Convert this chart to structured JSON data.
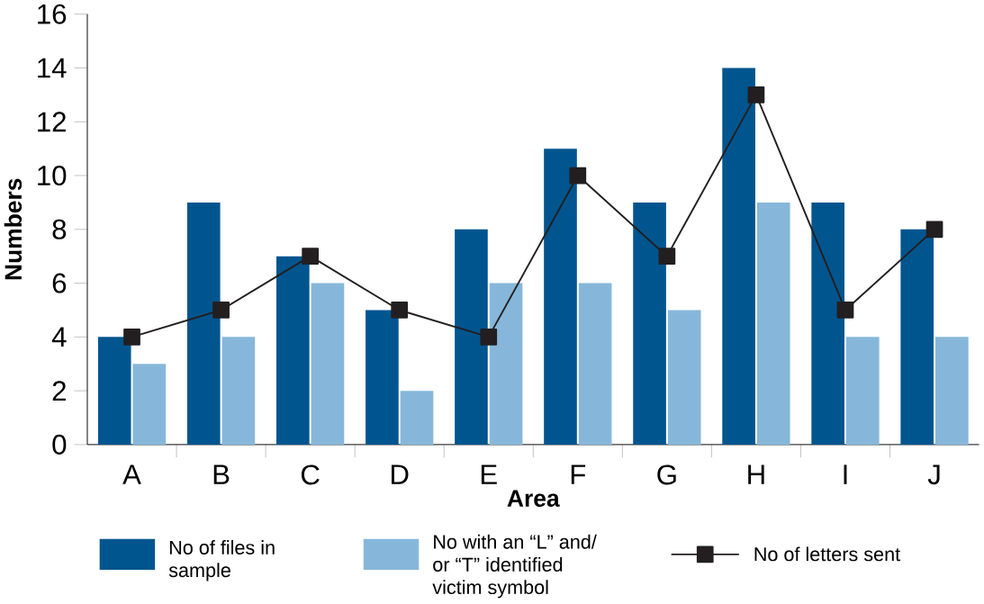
{
  "chart_data": {
    "type": "bar",
    "xlabel": "Area",
    "ylabel": "Numbers",
    "categories": [
      "A",
      "B",
      "C",
      "D",
      "E",
      "F",
      "G",
      "H",
      "I",
      "J"
    ],
    "series": [
      {
        "name": "No of files in sample",
        "color": "#00558f",
        "values": [
          4,
          9,
          7,
          5,
          8,
          11,
          9,
          14,
          9,
          8
        ]
      },
      {
        "name": "No with an “L” and/ or “T” identified victim symbol",
        "color": "#86b7da",
        "values": [
          3,
          4,
          6,
          2,
          6,
          6,
          5,
          9,
          4,
          4
        ]
      },
      {
        "name": "No of letters sent",
        "type": "line",
        "color": "#231f20",
        "marker": "square",
        "values": [
          4,
          5,
          7,
          5,
          4,
          10,
          7,
          13,
          5,
          8
        ]
      }
    ],
    "ylim": [
      0,
      16
    ],
    "yticks": [
      0,
      2,
      4,
      6,
      8,
      10,
      12,
      14,
      16
    ],
    "legend": "bottom"
  }
}
